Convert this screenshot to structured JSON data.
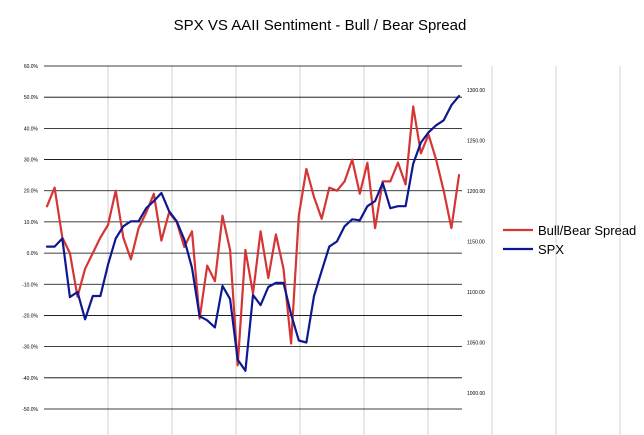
{
  "chart_data": {
    "type": "line",
    "title": "SPX VS AAII Sentiment - Bull / Bear Spread",
    "xlabel": "",
    "ylabel": "",
    "grid": true,
    "legend_position": "right",
    "y_left": {
      "min": -0.5,
      "max": 0.6,
      "ticks": [
        "60.0%",
        "50.0%",
        "40.0%",
        "30.0%",
        "20.0%",
        "10.0%",
        "0.0%",
        "-10.0%",
        "-20.0%",
        "-30.0%",
        "-40.0%",
        "-50.0%"
      ]
    },
    "y_right": {
      "min": 1000,
      "max": 1300,
      "ticks": [
        "1300.00",
        "1250.00",
        "1200.00",
        "1150.00",
        "1100.00",
        "1050.00",
        "1000.00"
      ]
    },
    "series": [
      {
        "name": "Bull/Bear Spread",
        "color": "#d63535",
        "axis": "left",
        "values": [
          0.15,
          0.21,
          0.05,
          0.0,
          -0.14,
          -0.05,
          0.0,
          0.05,
          0.09,
          0.2,
          0.05,
          -0.02,
          0.08,
          0.13,
          0.19,
          0.04,
          0.13,
          0.1,
          0.02,
          0.07,
          -0.21,
          -0.04,
          -0.09,
          0.12,
          0.01,
          -0.36,
          0.01,
          -0.13,
          0.07,
          -0.08,
          0.06,
          -0.05,
          -0.29,
          0.12,
          0.27,
          0.18,
          0.11,
          0.21,
          0.2,
          0.23,
          0.3,
          0.19,
          0.29,
          0.08,
          0.23,
          0.23,
          0.29,
          0.22,
          0.47,
          0.32,
          0.38,
          0.3,
          0.2,
          0.08,
          0.25
        ]
      },
      {
        "name": "SPX",
        "color": "#0d1890",
        "axis": "right",
        "values": [
          1145,
          1145,
          1153,
          1095,
          1100,
          1073,
          1096,
          1096,
          1127,
          1153,
          1165,
          1170,
          1170,
          1183,
          1190,
          1198,
          1180,
          1170,
          1152,
          1124,
          1076,
          1072,
          1065,
          1106,
          1093,
          1033,
          1022,
          1097,
          1087,
          1105,
          1109,
          1109,
          1078,
          1052,
          1050,
          1096,
          1121,
          1145,
          1150,
          1165,
          1172,
          1171,
          1185,
          1190,
          1208,
          1183,
          1185,
          1185,
          1227,
          1248,
          1258,
          1265,
          1270,
          1285,
          1294
        ]
      }
    ]
  }
}
